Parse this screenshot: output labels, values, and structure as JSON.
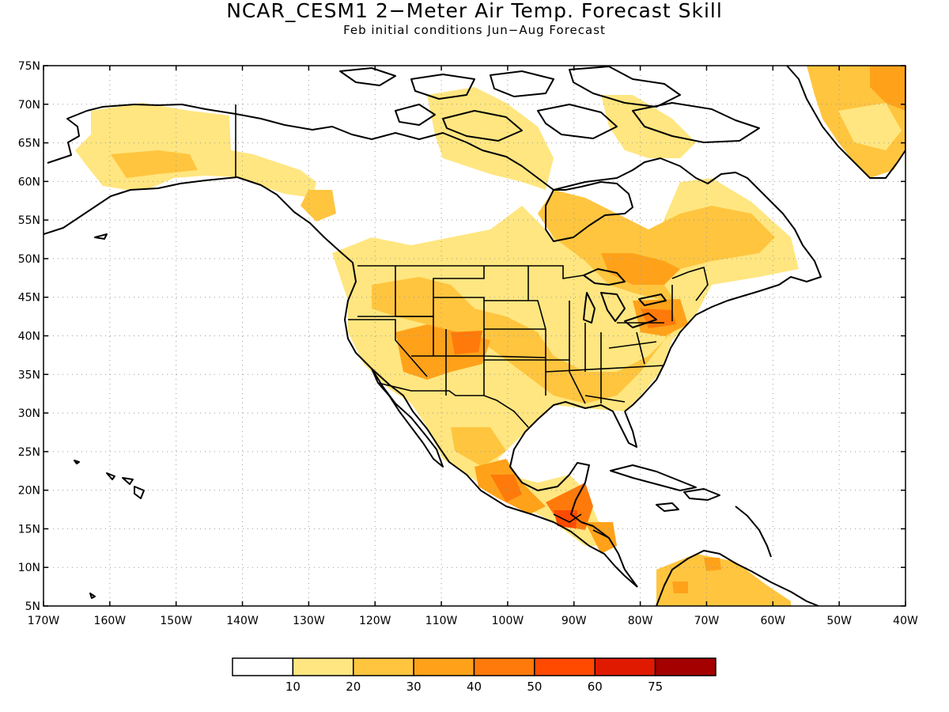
{
  "title": "NCAR_CESM1 2−Meter Air Temp. Forecast Skill",
  "subtitle": "Feb initial conditions  Jun−Aug Forecast",
  "map": {
    "projection": "cylindrical-equidistant",
    "lon_range": [
      -170,
      -40
    ],
    "lat_range": [
      5,
      75
    ],
    "grid": true
  },
  "lat_labels": [
    "75N",
    "70N",
    "65N",
    "60N",
    "55N",
    "50N",
    "45N",
    "40N",
    "35N",
    "30N",
    "25N",
    "20N",
    "15N",
    "10N",
    "5N"
  ],
  "lon_labels": [
    "170W",
    "160W",
    "150W",
    "140W",
    "130W",
    "120W",
    "110W",
    "100W",
    "90W",
    "80W",
    "70W",
    "60W",
    "50W",
    "40W"
  ],
  "colorbar": {
    "levels": [
      "10",
      "20",
      "30",
      "40",
      "50",
      "60",
      "75"
    ],
    "colors": [
      "#ffffff",
      "#ffe680",
      "#ffc53f",
      "#ffa21a",
      "#ff7a0a",
      "#ff4a00",
      "#e01a00",
      "#a50000"
    ]
  },
  "icons": {
    "coastline": "coastline-outline",
    "borders": "state-border-lines",
    "shading": "skill-shading"
  }
}
